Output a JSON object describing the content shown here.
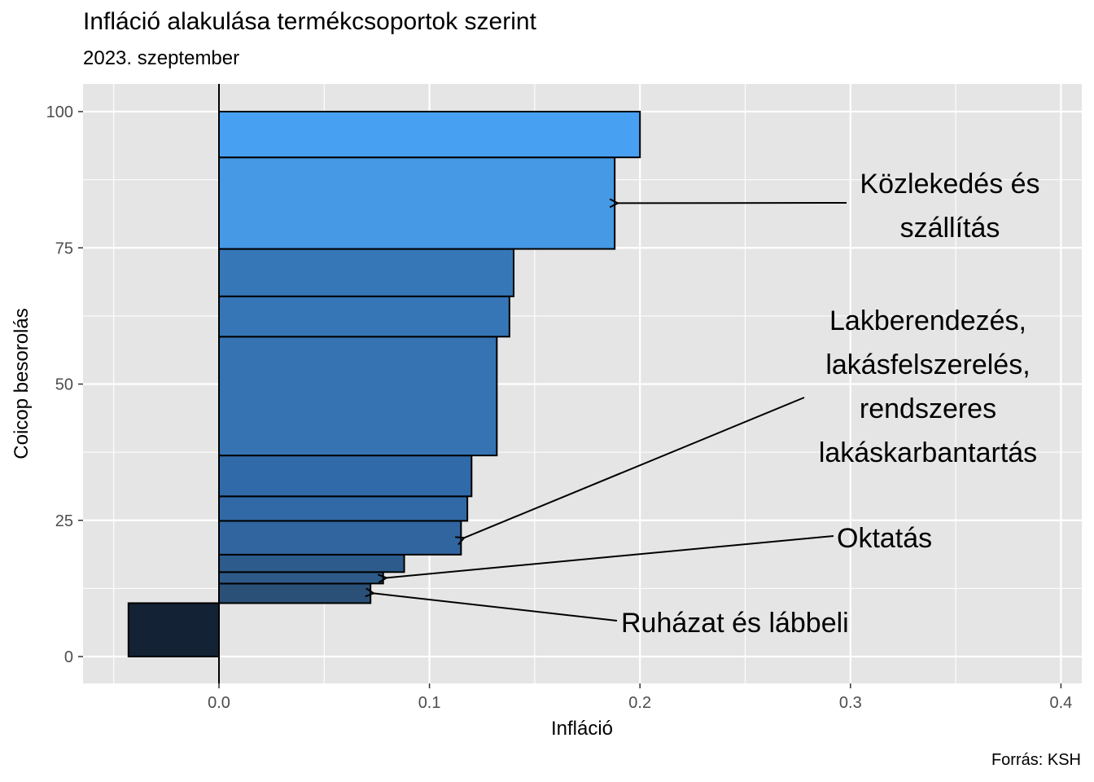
{
  "chart_data": {
    "type": "bar",
    "title": "Infláció alakulása termékcsoportok szerint",
    "subtitle": "2023. szeptember",
    "xlabel": "Infláció",
    "ylabel": "Coicop besorolás",
    "caption": "Forrás: KSH",
    "xlim": [
      -0.065,
      0.405
    ],
    "ylim": [
      -5,
      105
    ],
    "x_ticks": [
      "0.0",
      "0.1",
      "0.2",
      "0.3",
      "0.4"
    ],
    "y_ticks": [
      "0",
      "25",
      "50",
      "75",
      "100"
    ],
    "grid": true,
    "bars": [
      {
        "value": -0.043,
        "cum_start": 0,
        "cum_end": 9.8,
        "color": "#132235"
      },
      {
        "value": 0.072,
        "cum_start": 9.8,
        "cum_end": 13.4,
        "color": "#2b5078"
      },
      {
        "value": 0.078,
        "cum_start": 13.4,
        "cum_end": 15.5,
        "color": "#2d5a88"
      },
      {
        "value": 0.088,
        "cum_start": 15.5,
        "cum_end": 18.7,
        "color": "#2d5b8b"
      },
      {
        "value": 0.115,
        "cum_start": 18.7,
        "cum_end": 24.9,
        "color": "#3065a0"
      },
      {
        "value": 0.118,
        "cum_start": 24.9,
        "cum_end": 29.4,
        "color": "#3169a6"
      },
      {
        "value": 0.12,
        "cum_start": 29.4,
        "cum_end": 36.9,
        "color": "#316aa8"
      },
      {
        "value": 0.132,
        "cum_start": 36.9,
        "cum_end": 58.7,
        "color": "#3573b2"
      },
      {
        "value": 0.138,
        "cum_start": 58.7,
        "cum_end": 66.1,
        "color": "#3676b6"
      },
      {
        "value": 0.14,
        "cum_start": 66.1,
        "cum_end": 74.8,
        "color": "#3677b8"
      },
      {
        "value": 0.188,
        "cum_start": 74.8,
        "cum_end": 91.6,
        "color": "#4599e5"
      },
      {
        "value": 0.2,
        "cum_start": 91.6,
        "cum_end": 100,
        "color": "#48a0f2"
      }
    ],
    "annotations": [
      {
        "lines": [
          "Közlekedés és",
          "szállítás"
        ],
        "bar_index": 10
      },
      {
        "lines": [
          "Lakberendezés,",
          "lakásfelszerelés,",
          "rendszeres",
          "lakáskarbantartás"
        ],
        "bar_index": 4
      },
      {
        "lines": [
          "Oktatás"
        ],
        "bar_index": 2
      },
      {
        "lines": [
          "Ruházat és lábbeli"
        ],
        "bar_index": 1
      }
    ]
  }
}
